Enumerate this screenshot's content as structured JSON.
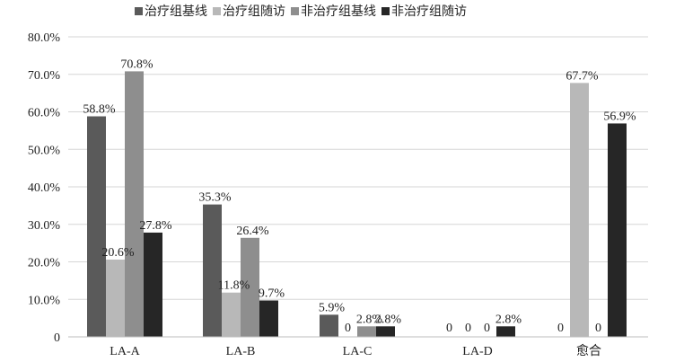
{
  "chart_data": {
    "type": "bar",
    "categories": [
      "LA-A",
      "LA-B",
      "LA-C",
      "LA-D",
      "愈合"
    ],
    "series": [
      {
        "name": "治疗组基线",
        "color": "#5a5a5a",
        "values": [
          58.8,
          35.3,
          5.9,
          0,
          0
        ],
        "labels": [
          "58.8%",
          "35.3%",
          "5.9%",
          "0",
          "0"
        ]
      },
      {
        "name": "治疗组随访",
        "color": "#b8b8b8",
        "values": [
          20.6,
          11.8,
          0,
          0,
          67.7
        ],
        "labels": [
          "20.6%",
          "11.8%",
          "0",
          "0",
          "67.7%"
        ]
      },
      {
        "name": "非治疗组基线",
        "color": "#8e8e8e",
        "values": [
          70.8,
          26.4,
          2.8,
          0,
          0
        ],
        "labels": [
          "70.8%",
          "26.4%",
          "2.8%",
          "0",
          "0"
        ]
      },
      {
        "name": "非治疗组随访",
        "color": "#262626",
        "values": [
          27.8,
          9.7,
          2.8,
          2.8,
          56.9
        ],
        "labels": [
          "27.8%",
          "9.7%",
          "2.8%",
          "2.8%",
          "56.9%"
        ]
      }
    ],
    "yticks": [
      "0",
      "10.0%",
      "20.0%",
      "30.0%",
      "40.0%",
      "50.0%",
      "60.0%",
      "70.0%",
      "80.0%"
    ],
    "ylim": [
      0,
      80
    ],
    "grid": true,
    "legend_position": "top"
  }
}
